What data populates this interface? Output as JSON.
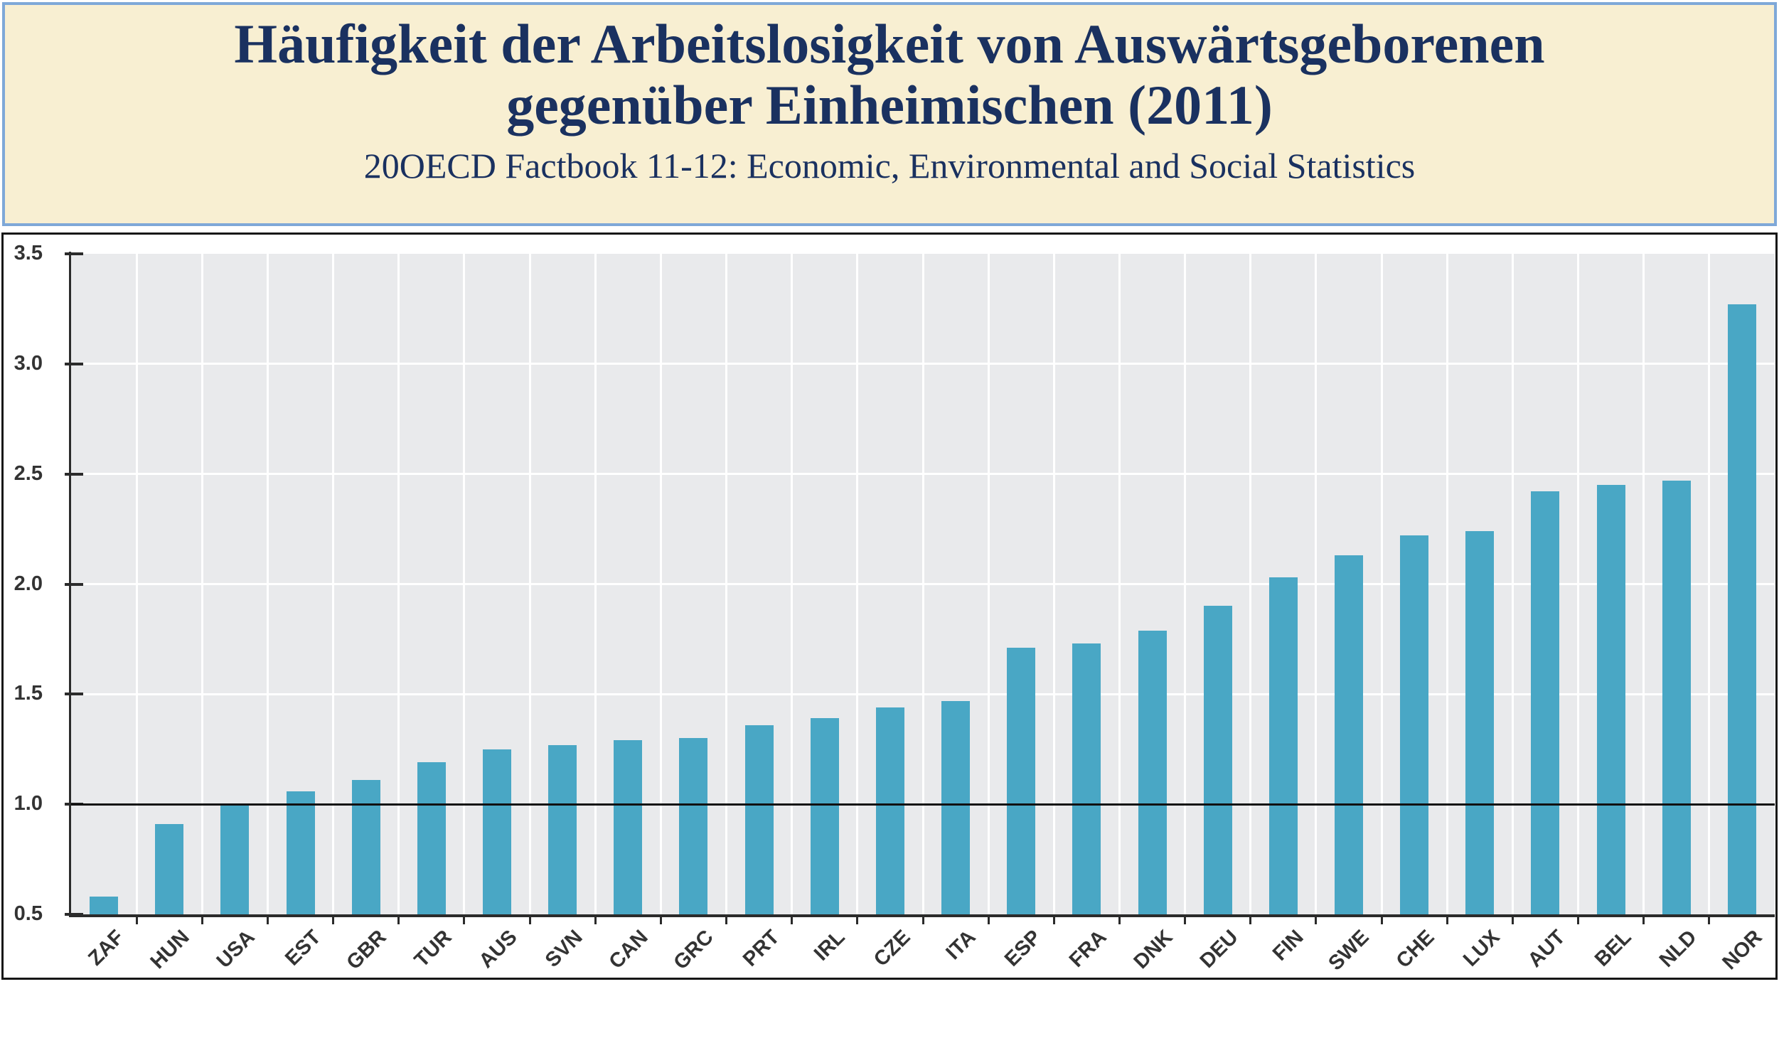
{
  "header": {
    "title_line1": "Häufigkeit der Arbeitslosigkeit von Auswärtsgeborenen",
    "title_line2": "gegenüber Einheimischen (2011)",
    "subtitle": "20OECD Factbook 11-12: Economic, Environmental and Social Statistics"
  },
  "chart_data": {
    "type": "bar",
    "title": "Häufigkeit der Arbeitslosigkeit von Auswärtsgeborenen gegenüber Einheimischen (2011)",
    "subtitle": "20OECD Factbook 11-12: Economic, Environmental and Social Statistics",
    "categories": [
      "ZAF",
      "HUN",
      "USA",
      "EST",
      "GBR",
      "TUR",
      "AUS",
      "SVN",
      "CAN",
      "GRC",
      "PRT",
      "IRL",
      "CZE",
      "ITA",
      "ESP",
      "FRA",
      "DNK",
      "DEU",
      "FIN",
      "SWE",
      "CHE",
      "LUX",
      "AUT",
      "BEL",
      "NLD",
      "NOR"
    ],
    "values": [
      0.58,
      0.91,
      1.0,
      1.06,
      1.11,
      1.19,
      1.25,
      1.27,
      1.29,
      1.3,
      1.36,
      1.39,
      1.44,
      1.47,
      1.71,
      1.73,
      1.79,
      1.9,
      2.03,
      2.13,
      2.22,
      2.24,
      2.42,
      2.45,
      2.47,
      3.27
    ],
    "xlabel": "",
    "ylabel": "",
    "ylim": [
      0.5,
      3.5
    ],
    "yticks": [
      0.5,
      1.0,
      1.5,
      2.0,
      2.5,
      3.0,
      3.5
    ],
    "reference_line": 1.0,
    "grid": true,
    "legend_position": "none",
    "x_tick_rotation": 45
  },
  "colors": {
    "header_bg": "#F8EFD2",
    "header_border": "#7FA8D8",
    "title": "#1A3160",
    "plot_bg": "#E9EAEC",
    "grid": "#FFFFFF",
    "bar": "#49A7C5",
    "axis": "#2B2B2B",
    "tick_label": "#333333",
    "reference_line": "#111111"
  }
}
